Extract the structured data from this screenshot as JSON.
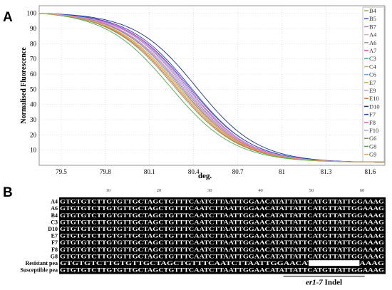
{
  "panel_a": {
    "letter": "A",
    "chart_data": {
      "type": "line",
      "title": "",
      "xlabel": "deg.",
      "ylabel": "Normalised Fluorescence",
      "xlim": [
        79.35,
        81.7
      ],
      "ylim": [
        0,
        105
      ],
      "x_ticks": [
        "79.5",
        "79.8",
        "80.1",
        "80.4",
        "80.7",
        "81",
        "81.3",
        "81.6"
      ],
      "x_tick_values": [
        79.5,
        79.8,
        80.1,
        80.4,
        80.7,
        81.0,
        81.3,
        81.6
      ],
      "y_ticks": [
        "10",
        "20",
        "30",
        "40",
        "50",
        "60",
        "70",
        "80",
        "90",
        "100"
      ],
      "y_tick_values": [
        10,
        20,
        30,
        40,
        50,
        60,
        70,
        80,
        90,
        100
      ],
      "grid": true,
      "legend_position": "right",
      "curve_start": 79.35,
      "series": [
        {
          "name": "B4",
          "color": "#b5a642",
          "midpoint": 80.33,
          "slope": 0.215
        },
        {
          "name": "B5",
          "color": "#3a5fcd",
          "midpoint": 80.37,
          "slope": 0.215
        },
        {
          "name": "B7",
          "color": "#c47ac0",
          "midpoint": 80.35,
          "slope": 0.21
        },
        {
          "name": "A4",
          "color": "#e8a0c8",
          "midpoint": 80.3,
          "slope": 0.22
        },
        {
          "name": "A6",
          "color": "#9b8fcf",
          "midpoint": 80.32,
          "slope": 0.215
        },
        {
          "name": "A7",
          "color": "#e040c0",
          "midpoint": 80.36,
          "slope": 0.21
        },
        {
          "name": "C3",
          "color": "#40a0d0",
          "midpoint": 80.31,
          "slope": 0.215
        },
        {
          "name": "C4",
          "color": "#a0c860",
          "midpoint": 80.29,
          "slope": 0.22
        },
        {
          "name": "C6",
          "color": "#60a8e0",
          "midpoint": 80.34,
          "slope": 0.21
        },
        {
          "name": "E7",
          "color": "#d0b040",
          "midpoint": 80.3,
          "slope": 0.22
        },
        {
          "name": "E9",
          "color": "#d890d0",
          "midpoint": 80.33,
          "slope": 0.215
        },
        {
          "name": "E10",
          "color": "#e07020",
          "midpoint": 80.28,
          "slope": 0.22
        },
        {
          "name": "D10",
          "color": "#203080",
          "midpoint": 80.42,
          "slope": 0.21
        },
        {
          "name": "F7",
          "color": "#2050c0",
          "midpoint": 80.38,
          "slope": 0.21
        },
        {
          "name": "F8",
          "color": "#f060b0",
          "midpoint": 80.32,
          "slope": 0.215
        },
        {
          "name": "F10",
          "color": "#b0a0e0",
          "midpoint": 80.35,
          "slope": 0.215
        },
        {
          "name": "G6",
          "color": "#a08040",
          "midpoint": 80.27,
          "slope": 0.22
        },
        {
          "name": "G8",
          "color": "#40b040",
          "midpoint": 80.24,
          "slope": 0.22
        },
        {
          "name": "G9",
          "color": "#e0a060",
          "midpoint": 80.29,
          "slope": 0.22
        }
      ]
    }
  },
  "panel_b": {
    "letter": "B",
    "ruler": [
      "10",
      "20",
      "30",
      "40",
      "50",
      "60"
    ],
    "ruler_positions": [
      10,
      20,
      30,
      40,
      50,
      60
    ],
    "rows": [
      {
        "label": "A4",
        "seq": "GTGTGTCTTGTGTTGCTAGCTGTTTCAATCTTAATTGGAACATATTATTCATGTTATTGGAAAG"
      },
      {
        "label": "A6",
        "seq": "GTGTGTCTTGTGTTGCTAGCTGTTTCAATCTTAATTGGAACATATTATTCATGTTATTGGAAAG"
      },
      {
        "label": "B4",
        "seq": "GTGTGTCTTGTGTTGCTAGCTGTTTCAATCTTAATTGGAACATATTATTCATGTTATTGGAAAG"
      },
      {
        "label": "C3",
        "seq": "GTGTGTCTTGTGTTGCTAGCTGTTTCAATCTTAATTGGAACATATTATTCATGTTATTGGAAAG"
      },
      {
        "label": "D10",
        "seq": "GTGTGTCTTGTGTTGCTAGCTGTTTCAATCTTAATTGGAACATATTATTCATGTTATTGGAAAG"
      },
      {
        "label": "E7",
        "seq": "GTGTGTCTTGTGTTGCTAGCTGTTTCAATCTTAATTGGAACATATTATTCATGTTATTGGAAAG"
      },
      {
        "label": "F7",
        "seq": "GTGTGTCTTGTGTTGCTAGCTGTTTCAATCTTAATTGGAACATATTATTCATGTTATTGGAAAG"
      },
      {
        "label": "F8",
        "seq": "GTGTGTCTTGTGTTGCTAGCTGTTTCAATCTTAATTGGAACATATTATTCATGTTATTGGAAAG"
      },
      {
        "label": "G8",
        "seq": "GTGTGTCTTGTGTTGCTAGCTGTTTCAATCTTAATTGGAACATATTATTCATGTTATTGGAAAG"
      },
      {
        "label": "Resistant pea",
        "seq": "GTGTGTCTTGTGTTGCTAGCTGTTTCAATCTTAATTGGAACATATTATT----------GGAAAG"
      },
      {
        "label": "Susceptible pea",
        "seq": "GTGTGTCTTGTGTTGCTAGCTGTTTCAATCTTAATTGGAACATATTATTCATGTTATTGGAAAG"
      }
    ],
    "indel_label_italic": "er1-7",
    "indel_label_rest": " Indel"
  }
}
